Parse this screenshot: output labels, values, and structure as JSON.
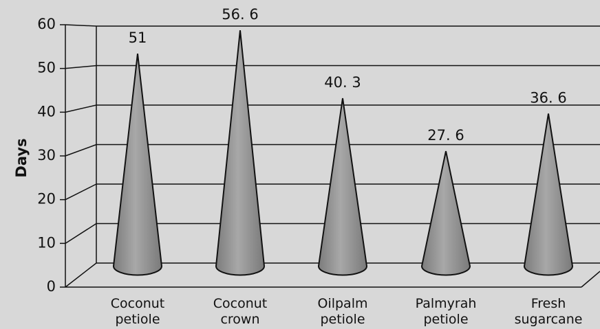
{
  "chart_data": {
    "type": "cone",
    "y_label": "Days",
    "categories": [
      [
        "Coconut",
        "petiole"
      ],
      [
        "Coconut",
        "crown"
      ],
      [
        "Oilpalm",
        "petiole"
      ],
      [
        "Palmyrah",
        "petiole"
      ],
      [
        "Fresh",
        "sugarcane"
      ]
    ],
    "values": [
      51,
      56.6,
      40.3,
      27.6,
      36.6
    ],
    "value_labels": [
      "51",
      "56. 6",
      "40. 3",
      "27. 6",
      "36. 6"
    ],
    "color": "#9a9a9a",
    "ylim": [
      0,
      60
    ],
    "yticks": [
      0,
      10,
      20,
      30,
      40,
      50,
      60
    ],
    "grid": true
  }
}
